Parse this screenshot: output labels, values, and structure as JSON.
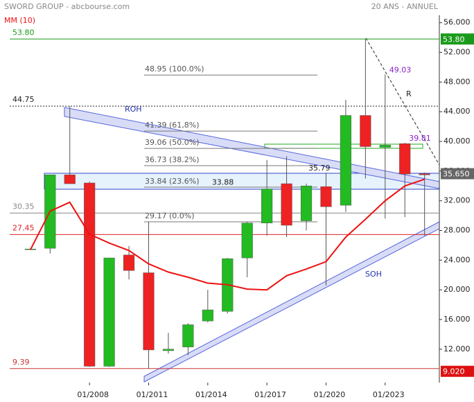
{
  "chart_data": {
    "type": "candlestick",
    "title": "SWORD GROUP - abcbourse.com",
    "subtitle": "20 ANS - ANNUEL",
    "x": [
      2005,
      2006,
      2007,
      2008,
      2009,
      2010,
      2011,
      2012,
      2013,
      2014,
      2015,
      2016,
      2017,
      2018,
      2019,
      2020,
      2021,
      2022,
      2023,
      2024,
      2025
    ],
    "open": [
      25.5,
      25.6,
      35.5,
      34.4,
      9.7,
      24.7,
      22.3,
      11.8,
      12.3,
      15.8,
      17.1,
      24.3,
      29.0,
      34.3,
      29.3,
      33.9,
      31.4,
      43.5,
      39.2,
      39.7,
      35.65
    ],
    "high": [
      25.6,
      35.5,
      44.75,
      34.6,
      24.3,
      25.9,
      29.17,
      14.2,
      15.5,
      20.0,
      24.3,
      29.2,
      37.5,
      38.0,
      34.3,
      35.79,
      45.6,
      53.8,
      49.03,
      39.81,
      35.8
    ],
    "low": [
      25.4,
      24.9,
      34.3,
      9.6,
      9.6,
      21.4,
      9.39,
      11.4,
      11.2,
      15.6,
      16.8,
      21.7,
      27.3,
      27.1,
      28.0,
      20.6,
      30.5,
      35.0,
      29.6,
      29.8,
      27.3
    ],
    "close": [
      25.5,
      35.5,
      34.3,
      9.7,
      24.3,
      22.6,
      11.9,
      12.0,
      15.3,
      17.3,
      24.2,
      29.0,
      33.6,
      28.7,
      34.0,
      31.2,
      43.5,
      39.3,
      39.5,
      35.6,
      35.5
    ],
    "up_color": "#22bb22",
    "down_color": "#ee2222",
    "ma": {
      "name": "MM (10)",
      "color": "#ee1111",
      "values": [
        25.4,
        30.6,
        31.8,
        27.5,
        26.3,
        25.3,
        23.5,
        22.4,
        21.7,
        20.9,
        20.7,
        20.1,
        20.0,
        21.9,
        22.8,
        23.8,
        27.1,
        29.5,
        32.0,
        34.0,
        34.9
      ]
    },
    "xlim": [
      2003.95,
      2025.75
    ],
    "ylim": [
      7.5,
      57
    ],
    "xticks": [
      {
        "value": 2008,
        "label": "01/2008"
      },
      {
        "value": 2011,
        "label": "01/2011"
      },
      {
        "value": 2014,
        "label": "01/2014"
      },
      {
        "value": 2017,
        "label": "01/2017"
      },
      {
        "value": 2020,
        "label": "01/2020"
      },
      {
        "value": 2023,
        "label": "01/2023"
      }
    ],
    "yticks": [
      {
        "value": 12,
        "label": "12.000"
      },
      {
        "value": 16,
        "label": "16.000"
      },
      {
        "value": 20,
        "label": "20.000"
      },
      {
        "value": 24,
        "label": "24.000"
      },
      {
        "value": 28,
        "label": "28.000"
      },
      {
        "value": 32,
        "label": "32.000"
      },
      {
        "value": 36,
        "label": "36.000"
      },
      {
        "value": 40,
        "label": "40.000"
      },
      {
        "value": 44,
        "label": "44.000"
      },
      {
        "value": 48,
        "label": "48.000"
      },
      {
        "value": 52,
        "label": "52.000"
      },
      {
        "value": 56,
        "label": "56.000"
      }
    ],
    "levels": [
      {
        "value": 53.8,
        "label": "53.80",
        "color": "#1a9a1a"
      },
      {
        "value": 44.75,
        "label": "44.75",
        "color": "#222222"
      },
      {
        "value": 30.35,
        "label": "30.35",
        "color": "#888888"
      },
      {
        "value": 27.45,
        "label": "27.45",
        "color": "#dd2222"
      },
      {
        "value": 9.39,
        "label": "9.39",
        "color": "#cc3333"
      }
    ],
    "fibonacci": [
      {
        "value": 48.95,
        "label": "48.95 (100.0%)"
      },
      {
        "value": 41.39,
        "label": "41.39 (61,8%)"
      },
      {
        "value": 39.06,
        "label": "39.06 (50.0%)"
      },
      {
        "value": 36.73,
        "label": "36.73 (38.2%)"
      },
      {
        "value": 33.84,
        "label": "33.84 (23.6%)"
      },
      {
        "value": 29.17,
        "label": "29.17 (0.0%)"
      }
    ],
    "price_tags": [
      {
        "value": 53.8,
        "label": "53.80",
        "color": "#1a9a1a"
      },
      {
        "value": 35.65,
        "label": "35.650",
        "color": "#666666"
      },
      {
        "value": 9.02,
        "label": "9.020",
        "color": "#dd1111"
      }
    ],
    "point_labels": [
      {
        "x": 2020,
        "value": 35.79,
        "label": "35.79",
        "color": "#222222"
      },
      {
        "x": 2023,
        "value": 49.03,
        "label": "49.03",
        "color": "#8822cc"
      },
      {
        "x": 2024,
        "value": 39.81,
        "label": "39.81",
        "color": "#8822cc"
      },
      {
        "x": 2014,
        "value": 33.88,
        "label": "33.88",
        "color": "#222222"
      }
    ],
    "annotations": [
      "ROH",
      "SOH",
      "R"
    ]
  }
}
